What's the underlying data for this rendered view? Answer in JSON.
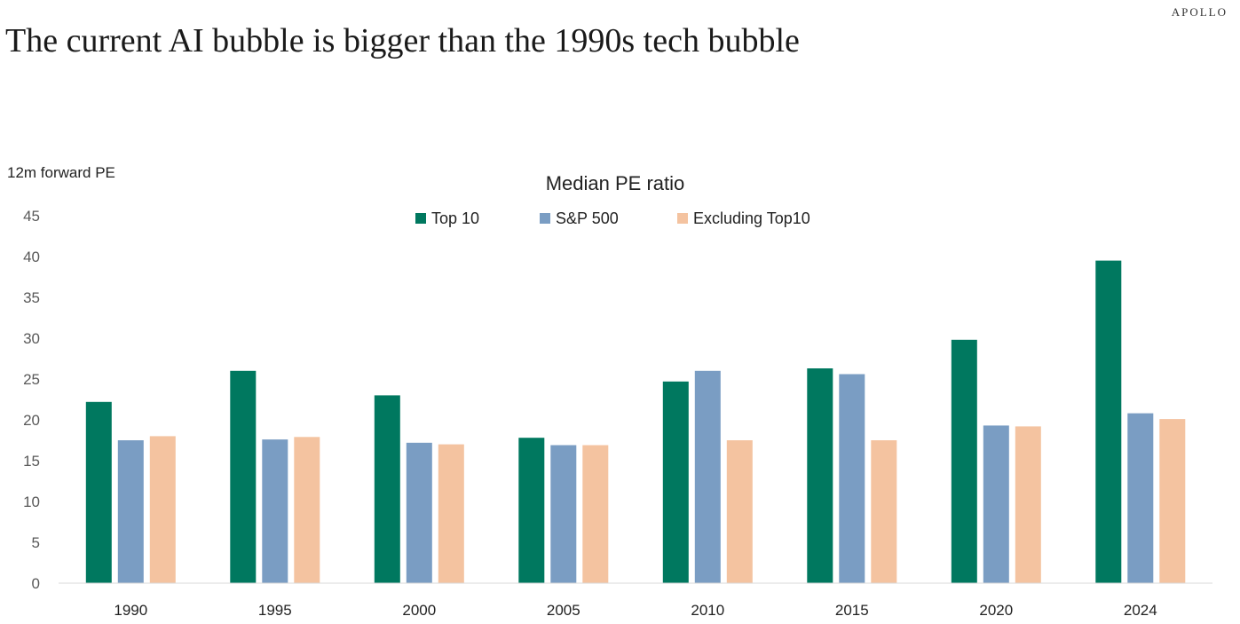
{
  "brand": "APOLLO",
  "headline": "The current AI bubble is bigger than the 1990s tech bubble",
  "chart_data": {
    "type": "bar",
    "title": "Median PE ratio",
    "ylabel": "12m forward PE",
    "xlabel": "",
    "ylim": [
      0,
      45
    ],
    "yticks": [
      0,
      5,
      10,
      15,
      20,
      25,
      30,
      35,
      40,
      45
    ],
    "grid": false,
    "legend_position": "top-center",
    "categories": [
      "1990",
      "1995",
      "2000",
      "2005",
      "2010",
      "2015",
      "2020",
      "2024"
    ],
    "series": [
      {
        "name": "Top 10",
        "color": "#00785f",
        "values": [
          22.2,
          26.0,
          23.0,
          17.8,
          24.7,
          26.3,
          29.8,
          39.5
        ]
      },
      {
        "name": "S&P 500",
        "color": "#7a9dc3",
        "values": [
          17.5,
          17.6,
          17.2,
          16.9,
          26.0,
          25.6,
          19.3,
          20.8
        ]
      },
      {
        "name": "Excluding Top10",
        "color": "#f4c3a0",
        "values": [
          18.0,
          17.9,
          17.0,
          16.9,
          17.5,
          17.5,
          19.2,
          20.1
        ]
      }
    ]
  }
}
